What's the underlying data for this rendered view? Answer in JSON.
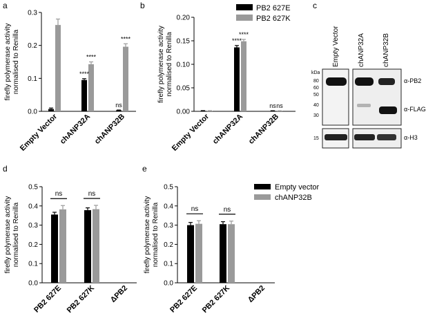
{
  "panels": {
    "a": "a",
    "b": "b",
    "c": "c",
    "d": "d",
    "e": "e"
  },
  "legend_top": {
    "items": [
      {
        "label": "PB2 627E",
        "color": "#000000"
      },
      {
        "label": "PB2 627K",
        "color": "#9a9a9a"
      }
    ]
  },
  "legend_bottom": {
    "items": [
      {
        "label": "Empty vector",
        "color": "#000000"
      },
      {
        "label": "chANP32B",
        "color": "#9a9a9a"
      }
    ]
  },
  "western_blot": {
    "lanes": [
      "Empty Vector",
      "chANP32A",
      "chANP32B"
    ],
    "kda_label": "kDa",
    "markers": [
      "80",
      "60",
      "50",
      "40",
      "30",
      "15"
    ],
    "bands": [
      "α-PB2",
      "α-FLAG",
      "α-H3"
    ]
  },
  "chart_data": [
    {
      "panel": "a",
      "type": "bar",
      "ylabel": "firefly polymerase activity\nnormalised to Renilla",
      "categories": [
        "Empty Vector",
        "chANP32A",
        "chANP32B"
      ],
      "ylim": [
        0,
        0.3
      ],
      "yticks": [
        "0.0",
        "0.1",
        "0.2",
        "0.3"
      ],
      "series": [
        {
          "name": "PB2 627E",
          "color": "#000000",
          "values": [
            0.007,
            0.095,
            0.003
          ],
          "errors": [
            0.003,
            0.004,
            0.001
          ]
        },
        {
          "name": "PB2 627K",
          "color": "#9a9a9a",
          "values": [
            0.262,
            0.143,
            0.196
          ],
          "errors": [
            0.018,
            0.007,
            0.009
          ]
        }
      ],
      "annotations": [
        {
          "category": 1,
          "series": 0,
          "text": "****"
        },
        {
          "category": 1,
          "series": 1,
          "text": "****"
        },
        {
          "category": 2,
          "series": 0,
          "text": "ns"
        },
        {
          "category": 2,
          "series": 1,
          "text": "****"
        }
      ]
    },
    {
      "panel": "b",
      "type": "bar",
      "ylabel": "firefly polymerase activity\nnormalised to Renilla",
      "categories": [
        "Empty Vector",
        "chANP32A",
        "chANP32B"
      ],
      "ylim": [
        0,
        0.2
      ],
      "yticks": [
        "0.00",
        "0.05",
        "0.10",
        "0.15",
        "0.20"
      ],
      "series": [
        {
          "name": "PB2 627E",
          "color": "#000000",
          "values": [
            0.001,
            0.136,
            0.001
          ],
          "errors": [
            0.0005,
            0.004,
            0.0003
          ]
        },
        {
          "name": "PB2 627K",
          "color": "#9a9a9a",
          "values": [
            0.001,
            0.149,
            0.001
          ],
          "errors": [
            0.0005,
            0.004,
            0.0003
          ]
        }
      ],
      "annotations": [
        {
          "category": 1,
          "series": 0,
          "text": "****"
        },
        {
          "category": 1,
          "series": 1,
          "text": "****"
        },
        {
          "category": 2,
          "series": 0,
          "text": "ns"
        },
        {
          "category": 2,
          "series": 1,
          "text": "ns"
        }
      ]
    },
    {
      "panel": "d",
      "type": "bar",
      "ylabel": "firefly polymerase activity\nnormalised to Renilla",
      "categories": [
        "PB2 627E",
        "PB2 627K",
        "ΔPB2"
      ],
      "ylim": [
        0,
        0.5
      ],
      "yticks": [
        "0.0",
        "0.1",
        "0.2",
        "0.3",
        "0.4",
        "0.5"
      ],
      "series": [
        {
          "name": "Empty vector",
          "color": "#000000",
          "values": [
            0.355,
            0.378,
            0
          ],
          "errors": [
            0.012,
            0.012,
            0
          ]
        },
        {
          "name": "chANP32B",
          "color": "#9a9a9a",
          "values": [
            0.382,
            0.383,
            0
          ],
          "errors": [
            0.02,
            0.02,
            0
          ]
        }
      ],
      "brackets": [
        {
          "category": 0,
          "text": "ns"
        },
        {
          "category": 1,
          "text": "ns"
        }
      ]
    },
    {
      "panel": "e",
      "type": "bar",
      "ylabel": "firefly polymerase activity\nnormalised to Renilla",
      "categories": [
        "PB2 627E",
        "PB2 627K",
        "ΔPB2"
      ],
      "ylim": [
        0,
        0.5
      ],
      "yticks": [
        "0.0",
        "0.1",
        "0.2",
        "0.3",
        "0.4",
        "0.5"
      ],
      "series": [
        {
          "name": "Empty vector",
          "color": "#000000",
          "values": [
            0.3,
            0.305,
            0
          ],
          "errors": [
            0.014,
            0.013,
            0
          ]
        },
        {
          "name": "chANP32B",
          "color": "#9a9a9a",
          "values": [
            0.307,
            0.305,
            0
          ],
          "errors": [
            0.016,
            0.016,
            0
          ]
        }
      ],
      "brackets": [
        {
          "category": 0,
          "text": "ns"
        },
        {
          "category": 1,
          "text": "ns"
        }
      ]
    }
  ]
}
